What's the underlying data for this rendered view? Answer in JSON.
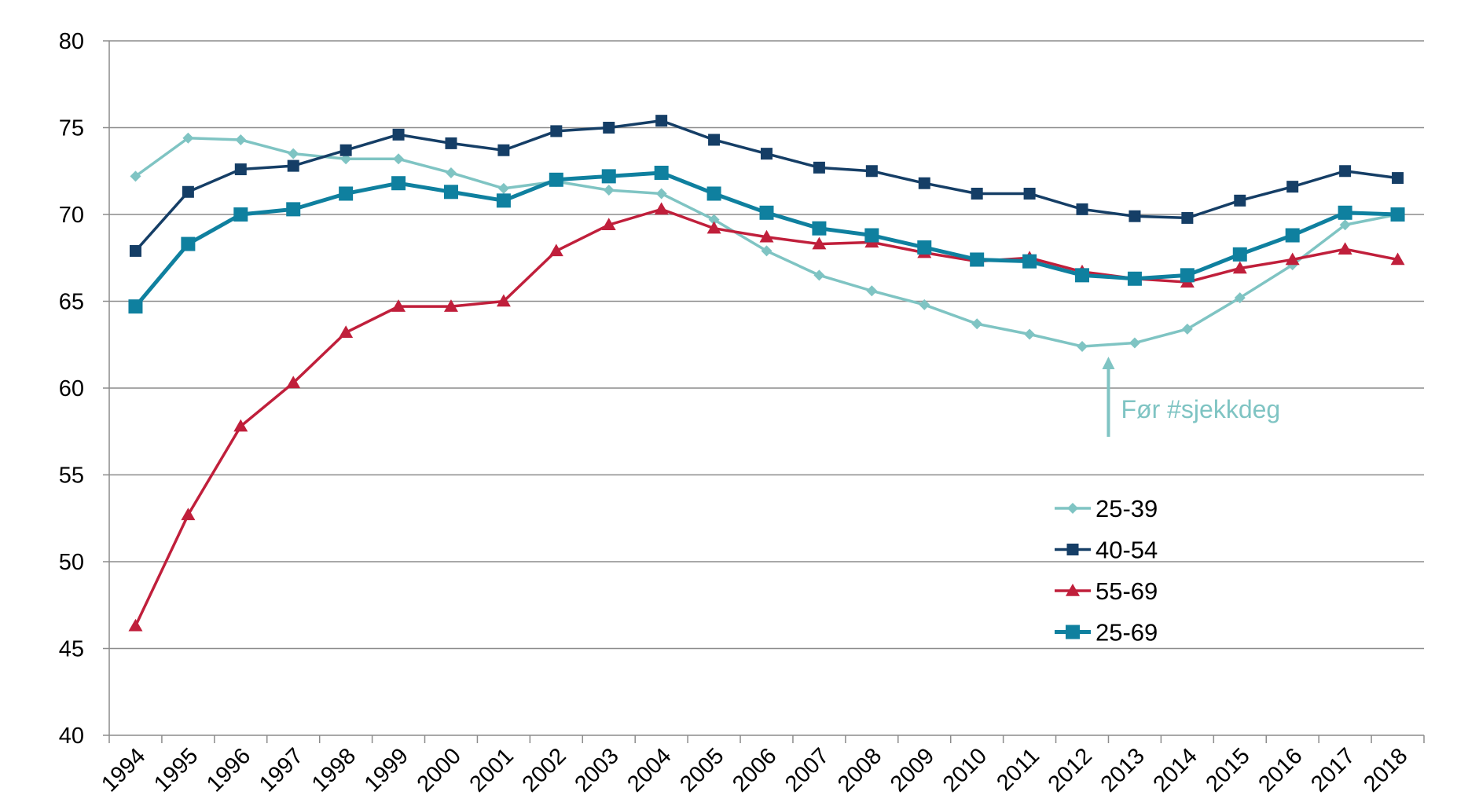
{
  "chart_data": {
    "type": "line",
    "title": "",
    "xlabel": "",
    "ylabel": "",
    "ylim": [
      40,
      80
    ],
    "yticks": [
      40,
      45,
      50,
      55,
      60,
      65,
      70,
      75,
      80
    ],
    "grid": true,
    "legend_placement": "center-right",
    "x": [
      "1994",
      "1995",
      "1996",
      "1997",
      "1998",
      "1999",
      "2000",
      "2001",
      "2002",
      "2003",
      "2004",
      "2005",
      "2006",
      "2007",
      "2008",
      "2009",
      "2010",
      "2011",
      "2012",
      "2013",
      "2014",
      "2015",
      "2016",
      "2017",
      "2018"
    ],
    "series": [
      {
        "name": "25-39",
        "color": "#7fc4c3",
        "marker": "diamond",
        "values": [
          72.2,
          74.4,
          74.3,
          73.5,
          73.2,
          73.2,
          72.4,
          71.5,
          71.9,
          71.4,
          71.2,
          69.7,
          67.9,
          66.5,
          65.6,
          64.8,
          63.7,
          63.1,
          62.4,
          62.6,
          63.4,
          65.2,
          67.1,
          69.4,
          70.0
        ]
      },
      {
        "name": "40-54",
        "color": "#153e66",
        "marker": "square",
        "values": [
          67.9,
          71.3,
          72.6,
          72.8,
          73.7,
          74.6,
          74.1,
          73.7,
          74.8,
          75.0,
          75.4,
          74.3,
          73.5,
          72.7,
          72.5,
          71.8,
          71.2,
          71.2,
          70.3,
          69.9,
          69.8,
          70.8,
          71.6,
          72.5,
          72.1
        ]
      },
      {
        "name": "55-69",
        "color": "#c01f3b",
        "marker": "triangle",
        "values": [
          46.3,
          52.7,
          57.8,
          60.3,
          63.2,
          64.7,
          64.7,
          65.0,
          67.9,
          69.4,
          70.3,
          69.2,
          68.7,
          68.3,
          68.4,
          67.8,
          67.3,
          67.5,
          66.7,
          66.3,
          66.1,
          66.9,
          67.4,
          68.0,
          67.4
        ]
      },
      {
        "name": "25-69",
        "color": "#0f809f",
        "marker": "square-large",
        "values": [
          64.7,
          68.3,
          70.0,
          70.3,
          71.2,
          71.8,
          71.3,
          70.8,
          72.0,
          72.2,
          72.4,
          71.2,
          70.1,
          69.2,
          68.8,
          68.1,
          67.4,
          67.3,
          66.5,
          66.3,
          66.5,
          67.7,
          68.8,
          70.1,
          70.0
        ]
      }
    ],
    "annotation": {
      "text": "Før #sjekkdeg",
      "x": "2013",
      "color": "#7fc4c3"
    }
  }
}
